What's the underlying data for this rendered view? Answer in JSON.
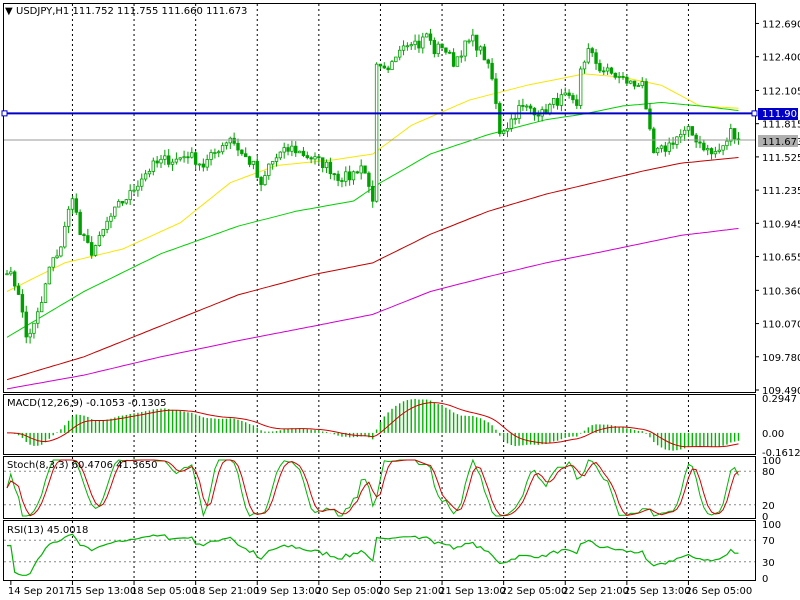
{
  "symbol_header": "USDJPY,H1  111.752 111.755 111.660 111.673",
  "colors": {
    "background": "#ffffff",
    "frame": "#000000",
    "grid": "#000000",
    "candle": "#00a000",
    "ma_yellow": "#f7e600",
    "ma_green": "#00d000",
    "ma_red": "#c00000",
    "ma_magenta": "#d000d0",
    "hline": "#0000c8",
    "price_line": "#9a9a9a",
    "macd_hist": "#00b400",
    "macd_signal": "#d00000",
    "stoch_main": "#00b400",
    "stoch_signal": "#d00000",
    "rsi": "#00b400"
  },
  "price_axis": {
    "ticks": [
      "112.690",
      "112.400",
      "112.105",
      "111.815",
      "111.525",
      "111.235",
      "110.945",
      "110.655",
      "110.360",
      "110.070",
      "109.780",
      "109.490"
    ],
    "hline_label": "111.905",
    "current_label": "111.673"
  },
  "time_axis": {
    "labels": [
      "14 Sep 2017",
      "15 Sep 13:00",
      "18 Sep 05:00",
      "18 Sep 21:00",
      "19 Sep 13:00",
      "20 Sep 05:00",
      "20 Sep 21:00",
      "21 Sep 13:00",
      "22 Sep 05:00",
      "22 Sep 21:00",
      "25 Sep 13:00",
      "26 Sep 05:00"
    ]
  },
  "macd": {
    "title": "MACD(12,26,9) -0.1053 -0.1305",
    "ticks": [
      "0.2947",
      "0.00",
      "-0.1612"
    ]
  },
  "stoch": {
    "title": "Stoch(8,3,3) 60.4706 41.3650",
    "ticks": [
      "100",
      "80",
      "20",
      "0"
    ]
  },
  "rsi": {
    "title": "RSI(13) 45.0018",
    "ticks": [
      "100",
      "70",
      "30",
      "0"
    ]
  },
  "chart_data": {
    "type": "candlestick",
    "symbol": "USDJPY",
    "timeframe": "H1",
    "ylim": [
      109.49,
      112.79
    ],
    "price_path_anchors": [
      [
        0,
        110.55
      ],
      [
        3,
        110.35
      ],
      [
        5,
        109.95
      ],
      [
        7,
        110.05
      ],
      [
        9,
        110.25
      ],
      [
        11,
        110.55
      ],
      [
        14,
        110.75
      ],
      [
        17,
        111.2
      ],
      [
        19,
        110.85
      ],
      [
        22,
        110.7
      ],
      [
        24,
        110.8
      ],
      [
        26,
        110.95
      ],
      [
        29,
        111.1
      ],
      [
        32,
        111.2
      ],
      [
        35,
        111.35
      ],
      [
        38,
        111.45
      ],
      [
        41,
        111.5
      ],
      [
        44,
        111.5
      ],
      [
        47,
        111.55
      ],
      [
        51,
        111.45
      ],
      [
        55,
        111.6
      ],
      [
        58,
        111.7
      ],
      [
        61,
        111.55
      ],
      [
        64,
        111.45
      ],
      [
        66,
        111.25
      ],
      [
        68,
        111.45
      ],
      [
        71,
        111.55
      ],
      [
        74,
        111.6
      ],
      [
        77,
        111.55
      ],
      [
        80,
        111.5
      ],
      [
        83,
        111.45
      ],
      [
        86,
        111.35
      ],
      [
        89,
        111.35
      ],
      [
        92,
        111.45
      ],
      [
        94,
        111.3
      ],
      [
        95,
        111.1
      ],
      [
        96,
        112.3
      ],
      [
        99,
        112.25
      ],
      [
        102,
        112.5
      ],
      [
        105,
        112.55
      ],
      [
        107,
        112.5
      ],
      [
        109,
        112.6
      ],
      [
        111,
        112.45
      ],
      [
        113,
        112.5
      ],
      [
        116,
        112.35
      ],
      [
        119,
        112.5
      ],
      [
        121,
        112.55
      ],
      [
        124,
        112.4
      ],
      [
        126,
        112.2
      ],
      [
        128,
        111.75
      ],
      [
        130,
        111.8
      ],
      [
        133,
        111.95
      ],
      [
        136,
        111.95
      ],
      [
        139,
        111.9
      ],
      [
        142,
        112.0
      ],
      [
        145,
        112.05
      ],
      [
        148,
        111.95
      ],
      [
        149,
        112.3
      ],
      [
        151,
        112.45
      ],
      [
        154,
        112.3
      ],
      [
        157,
        112.25
      ],
      [
        160,
        112.2
      ],
      [
        163,
        112.15
      ],
      [
        165,
        112.2
      ],
      [
        166,
        111.9
      ],
      [
        168,
        111.55
      ],
      [
        171,
        111.6
      ],
      [
        174,
        111.7
      ],
      [
        177,
        111.75
      ],
      [
        180,
        111.65
      ],
      [
        183,
        111.55
      ],
      [
        186,
        111.6
      ],
      [
        188,
        111.75
      ],
      [
        190,
        111.7
      ]
    ],
    "moving_averages": [
      {
        "color_key": "ma_yellow",
        "points": [
          [
            0,
            110.35
          ],
          [
            15,
            110.6
          ],
          [
            30,
            110.72
          ],
          [
            45,
            110.95
          ],
          [
            58,
            111.3
          ],
          [
            70,
            111.45
          ],
          [
            85,
            111.5
          ],
          [
            95,
            111.55
          ],
          [
            105,
            111.8
          ],
          [
            120,
            112.02
          ],
          [
            135,
            112.15
          ],
          [
            150,
            112.25
          ],
          [
            160,
            112.22
          ],
          [
            170,
            112.15
          ],
          [
            180,
            111.97
          ],
          [
            190,
            111.95
          ]
        ]
      },
      {
        "color_key": "ma_green",
        "points": [
          [
            0,
            109.95
          ],
          [
            20,
            110.35
          ],
          [
            40,
            110.68
          ],
          [
            60,
            110.92
          ],
          [
            75,
            111.05
          ],
          [
            90,
            111.14
          ],
          [
            97,
            111.3
          ],
          [
            110,
            111.55
          ],
          [
            125,
            111.72
          ],
          [
            140,
            111.85
          ],
          [
            150,
            111.9
          ],
          [
            160,
            111.97
          ],
          [
            170,
            112.0
          ],
          [
            180,
            111.97
          ],
          [
            190,
            111.93
          ]
        ]
      },
      {
        "color_key": "ma_red",
        "points": [
          [
            0,
            109.58
          ],
          [
            20,
            109.78
          ],
          [
            40,
            110.05
          ],
          [
            60,
            110.32
          ],
          [
            80,
            110.5
          ],
          [
            95,
            110.6
          ],
          [
            110,
            110.85
          ],
          [
            125,
            111.05
          ],
          [
            140,
            111.2
          ],
          [
            155,
            111.32
          ],
          [
            165,
            111.4
          ],
          [
            175,
            111.47
          ],
          [
            190,
            111.52
          ]
        ]
      },
      {
        "color_key": "ma_magenta",
        "points": [
          [
            0,
            109.5
          ],
          [
            20,
            109.62
          ],
          [
            40,
            109.78
          ],
          [
            60,
            109.92
          ],
          [
            80,
            110.05
          ],
          [
            95,
            110.15
          ],
          [
            110,
            110.35
          ],
          [
            125,
            110.48
          ],
          [
            140,
            110.6
          ],
          [
            155,
            110.7
          ],
          [
            165,
            110.77
          ],
          [
            175,
            110.84
          ],
          [
            190,
            110.9
          ]
        ]
      }
    ],
    "horizontal_line": 111.905,
    "current_price": 111.673
  }
}
